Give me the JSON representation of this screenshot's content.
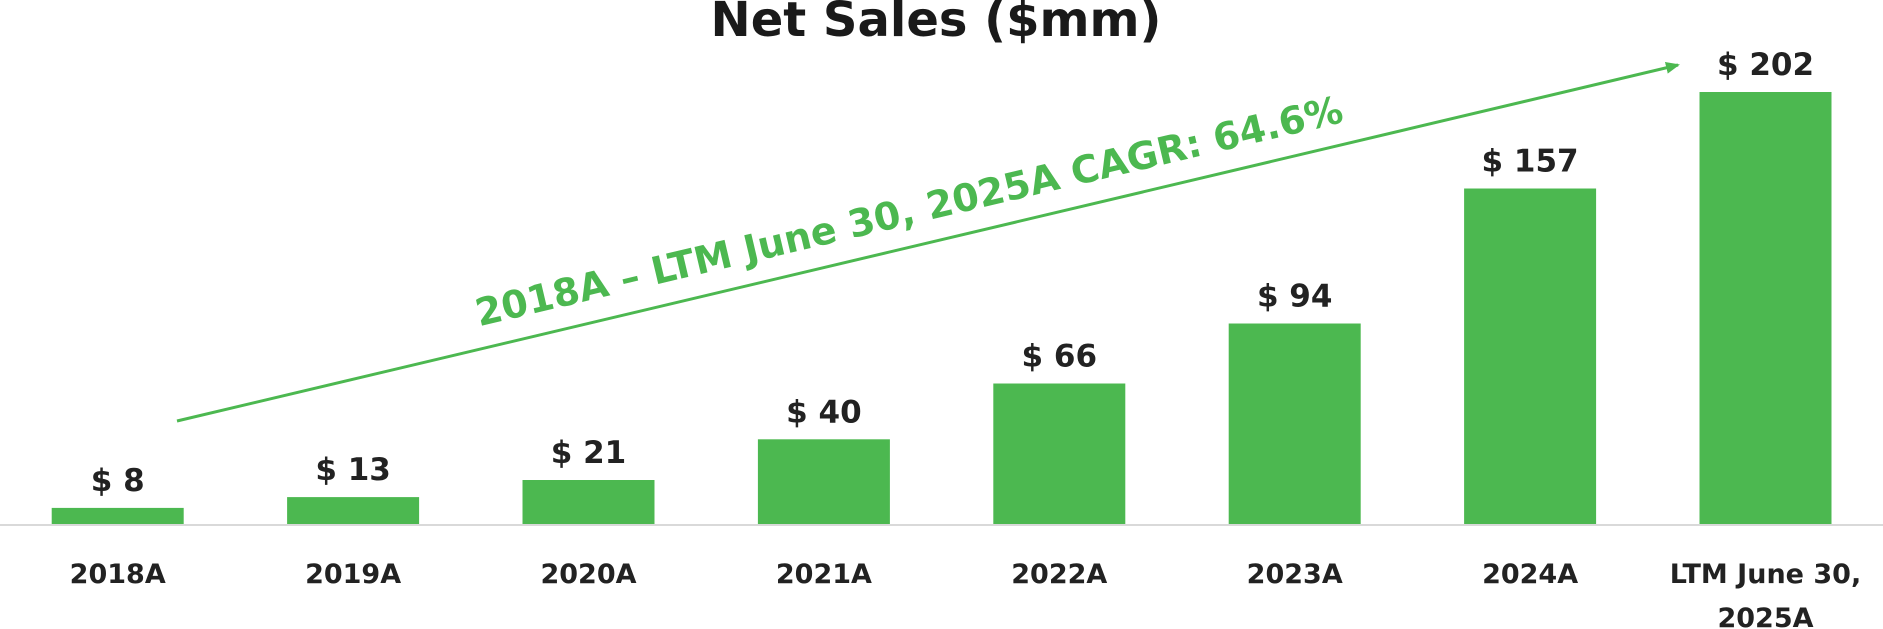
{
  "chart_data": {
    "type": "bar",
    "title": "Net Sales ($mm)",
    "categories": [
      "2018A",
      "2019A",
      "2020A",
      "2021A",
      "2022A",
      "2023A",
      "2024A",
      "LTM June 30, 2025A"
    ],
    "category_lines": [
      [
        "2018A"
      ],
      [
        "2019A"
      ],
      [
        "2020A"
      ],
      [
        "2021A"
      ],
      [
        "2022A"
      ],
      [
        "2023A"
      ],
      [
        "2024A"
      ],
      [
        "LTM June 30,",
        "2025A"
      ]
    ],
    "values": [
      8,
      13,
      21,
      40,
      66,
      94,
      157,
      202
    ],
    "value_labels": [
      "$ 8",
      "$ 13",
      "$ 21",
      "$ 40",
      "$ 66",
      "$ 94",
      "$ 157",
      "$ 202"
    ],
    "ylim": [
      0,
      202
    ],
    "xlabel": "",
    "ylabel": "",
    "grid": false,
    "annotation": "2018A – LTM June 30, 2025A CAGR: 64.6%"
  },
  "colors": {
    "bar": "#4cb850",
    "annotation": "#4cb850",
    "baseline": "#d9d9d9",
    "text": "#222222"
  }
}
